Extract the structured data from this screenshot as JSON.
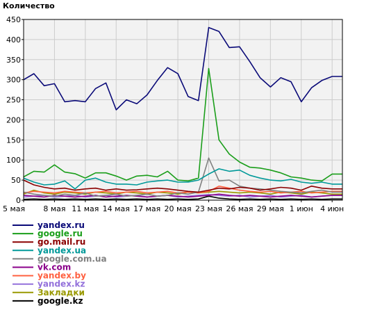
{
  "chart_data": {
    "type": "line",
    "ylabel": "Количество",
    "ylim": [
      0,
      450
    ],
    "yticks": [
      0,
      50,
      100,
      150,
      200,
      250,
      300,
      350,
      400,
      450
    ],
    "grid": true,
    "legend_position": "bottom-left",
    "categories": [
      "5 мая",
      "6 мая",
      "7 мая",
      "8 мая",
      "9 мая",
      "10 мая",
      "11 мая",
      "12 мая",
      "13 мая",
      "14 мая",
      "15 мая",
      "16 мая",
      "17 мая",
      "18 мая",
      "19 мая",
      "20 мая",
      "21 мая",
      "22 мая",
      "23 мая",
      "24 мая",
      "25 мая",
      "26 мая",
      "27 мая",
      "28 мая",
      "29 мая",
      "30 мая",
      "31 мая",
      "1 июн",
      "2 июн",
      "3 июн",
      "4 июн",
      "5 июн"
    ],
    "xtick_labels": [
      "5 мая",
      "8 мая",
      "11 мая",
      "14 мая",
      "17 мая",
      "20 мая",
      "23 мая",
      "26 мая",
      "29 мая",
      "1 июн",
      "4 июн"
    ],
    "series": [
      {
        "name": "yandex.ru",
        "color": "#0a0a78",
        "values": [
          300,
          315,
          285,
          290,
          245,
          248,
          245,
          278,
          292,
          225,
          250,
          240,
          262,
          298,
          330,
          315,
          258,
          248,
          430,
          420,
          380,
          382,
          345,
          305,
          282,
          305,
          295,
          245,
          280,
          298,
          308,
          308
        ]
      },
      {
        "name": "google.ru",
        "color": "#1a9e1a",
        "values": [
          58,
          72,
          70,
          88,
          70,
          66,
          55,
          68,
          68,
          60,
          50,
          60,
          62,
          58,
          72,
          50,
          48,
          55,
          328,
          150,
          115,
          95,
          82,
          80,
          75,
          68,
          58,
          55,
          50,
          48,
          65,
          65
        ]
      },
      {
        "name": "go.mail.ru",
        "color": "#8b0000",
        "values": [
          50,
          38,
          32,
          28,
          30,
          25,
          28,
          30,
          25,
          28,
          25,
          26,
          28,
          30,
          28,
          25,
          22,
          20,
          25,
          30,
          28,
          32,
          30,
          25,
          28,
          32,
          30,
          25,
          35,
          30,
          28,
          28
        ]
      },
      {
        "name": "yandex.ua",
        "color": "#009999",
        "values": [
          55,
          45,
          38,
          40,
          48,
          28,
          50,
          55,
          45,
          40,
          40,
          38,
          45,
          48,
          50,
          45,
          45,
          50,
          65,
          78,
          72,
          75,
          62,
          55,
          50,
          48,
          52,
          45,
          42,
          45,
          40,
          40
        ]
      },
      {
        "name": "google.com.ua",
        "color": "#808080",
        "values": [
          20,
          15,
          12,
          10,
          15,
          12,
          18,
          10,
          12,
          15,
          10,
          12,
          15,
          10,
          12,
          18,
          15,
          20,
          105,
          48,
          50,
          35,
          30,
          28,
          25,
          22,
          20,
          18,
          22,
          25,
          20,
          20
        ]
      },
      {
        "name": "vk.com",
        "color": "#8b008b",
        "values": [
          12,
          10,
          8,
          12,
          10,
          8,
          10,
          12,
          8,
          10,
          12,
          10,
          8,
          10,
          12,
          10,
          8,
          10,
          12,
          15,
          12,
          10,
          12,
          10,
          8,
          10,
          12,
          10,
          8,
          10,
          12,
          12
        ]
      },
      {
        "name": "yandex.by",
        "color": "#ff6040",
        "values": [
          18,
          22,
          20,
          18,
          22,
          20,
          18,
          20,
          22,
          18,
          20,
          22,
          18,
          20,
          22,
          18,
          20,
          18,
          22,
          35,
          30,
          25,
          22,
          20,
          22,
          18,
          20,
          22,
          18,
          20,
          22,
          22
        ]
      },
      {
        "name": "yandex.kz",
        "color": "#9370db",
        "values": [
          8,
          10,
          12,
          8,
          10,
          12,
          8,
          10,
          12,
          8,
          10,
          12,
          8,
          10,
          12,
          8,
          10,
          12,
          14,
          12,
          10,
          12,
          8,
          10,
          12,
          8,
          10,
          12,
          8,
          10,
          12,
          12
        ]
      },
      {
        "name": "Закладки",
        "color": "#999900",
        "values": [
          15,
          25,
          18,
          15,
          20,
          18,
          15,
          20,
          18,
          15,
          20,
          18,
          15,
          20,
          18,
          15,
          20,
          18,
          20,
          22,
          20,
          18,
          20,
          18,
          15,
          20,
          18,
          15,
          20,
          18,
          15,
          15
        ]
      },
      {
        "name": "google.kz",
        "color": "#000000",
        "values": [
          2,
          3,
          2,
          3,
          2,
          3,
          2,
          3,
          2,
          3,
          2,
          3,
          2,
          3,
          2,
          3,
          2,
          3,
          10,
          5,
          3,
          2,
          3,
          2,
          3,
          2,
          3,
          2,
          3,
          2,
          3,
          3
        ]
      }
    ]
  }
}
